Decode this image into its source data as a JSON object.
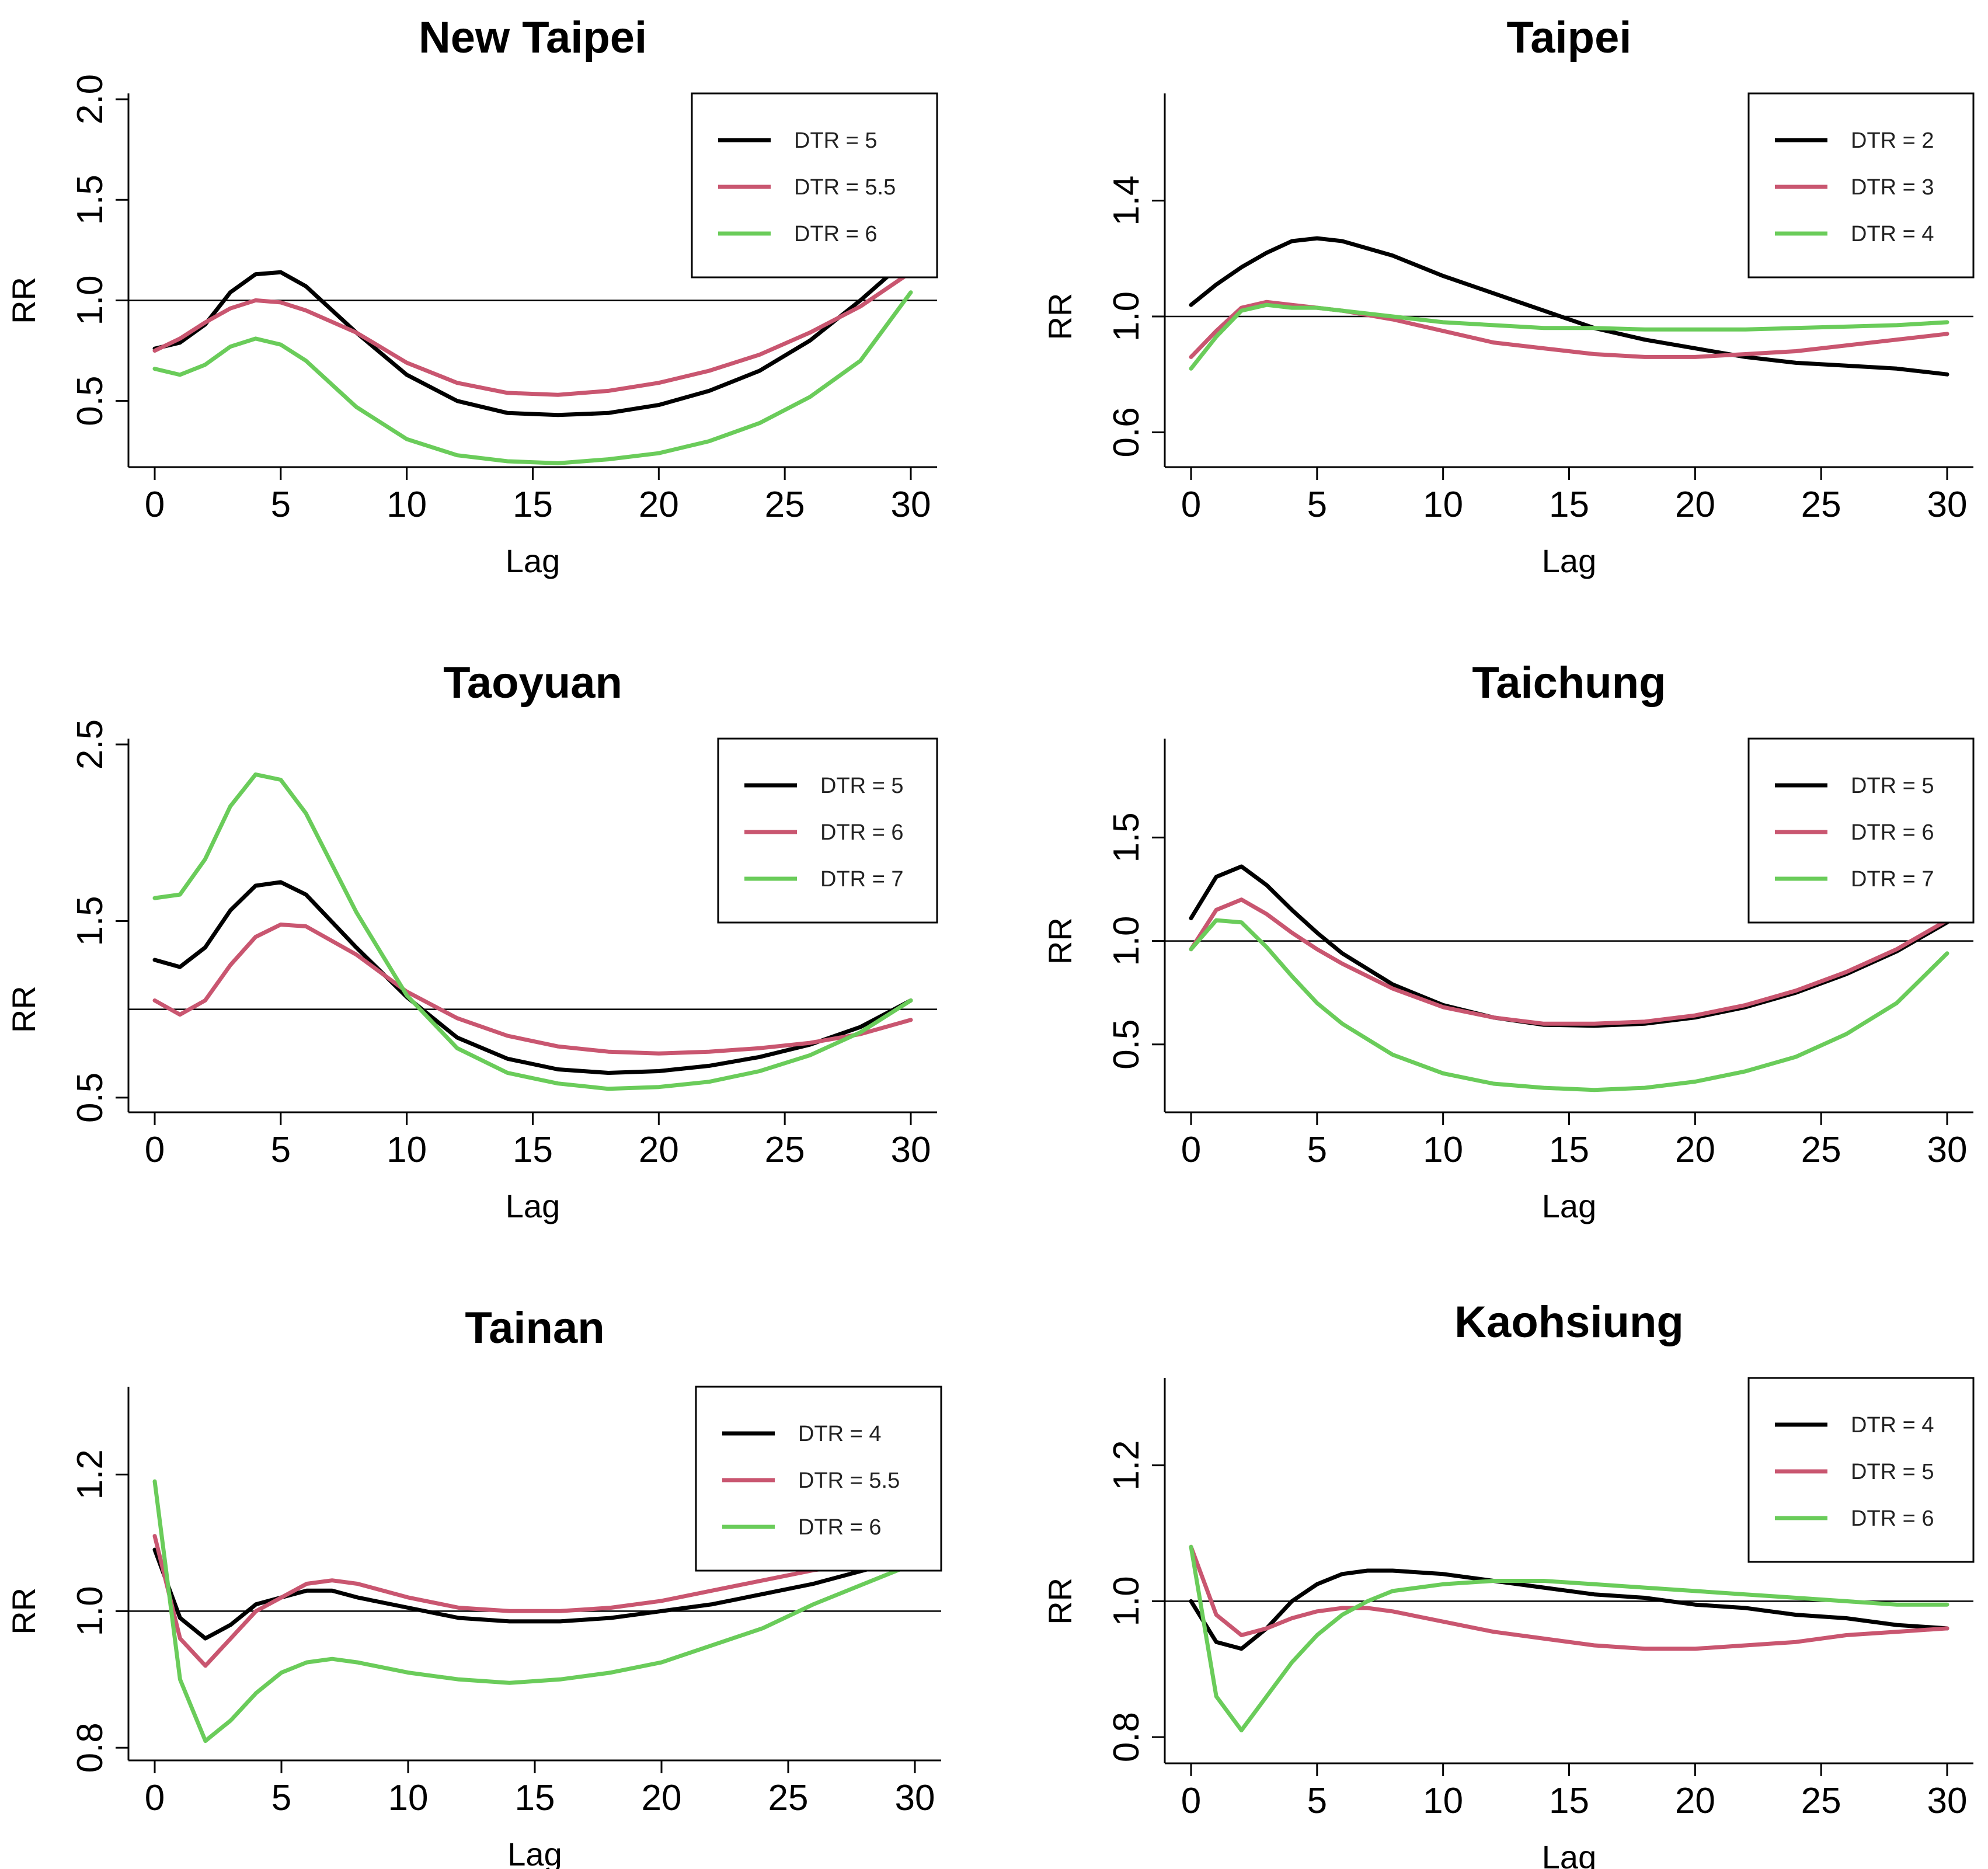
{
  "colors": {
    "black": "#000000",
    "red": "#c95670",
    "green": "#6acc5a",
    "refline": "#000000"
  },
  "chart_data": [
    {
      "type": "line",
      "title": "New Taipei",
      "xlabel": "Lag",
      "ylabel": "RR",
      "xlim": [
        0,
        30
      ],
      "ylim": [
        0.2,
        2.0
      ],
      "xticks": [
        "0",
        "5",
        "10",
        "15",
        "20",
        "25",
        "30"
      ],
      "yticks": [
        "0.5",
        "1.0",
        "1.5",
        "2.0"
      ],
      "yticks_values": [
        0.5,
        1.0,
        1.5,
        2.0
      ],
      "refline": 1.0,
      "legend_position": "top-right",
      "series": [
        {
          "name": "DTR = 5",
          "color": "black",
          "x": [
            0,
            1,
            2,
            3,
            4,
            5,
            6,
            8,
            10,
            12,
            14,
            16,
            18,
            20,
            22,
            24,
            26,
            28,
            30
          ],
          "values": [
            0.76,
            0.79,
            0.88,
            1.04,
            1.13,
            1.14,
            1.07,
            0.84,
            0.63,
            0.5,
            0.44,
            0.43,
            0.44,
            0.48,
            0.55,
            0.65,
            0.8,
            1.0,
            1.22
          ]
        },
        {
          "name": "DTR = 5.5",
          "color": "red",
          "x": [
            0,
            1,
            2,
            3,
            4,
            5,
            6,
            8,
            10,
            12,
            14,
            16,
            18,
            20,
            22,
            24,
            26,
            28,
            30
          ],
          "values": [
            0.75,
            0.81,
            0.89,
            0.96,
            1.0,
            0.99,
            0.95,
            0.84,
            0.69,
            0.59,
            0.54,
            0.53,
            0.55,
            0.59,
            0.65,
            0.73,
            0.84,
            0.97,
            1.14
          ]
        },
        {
          "name": "DTR = 6",
          "color": "green",
          "x": [
            0,
            1,
            2,
            3,
            4,
            5,
            6,
            8,
            10,
            12,
            14,
            16,
            18,
            20,
            22,
            24,
            26,
            28,
            30
          ],
          "values": [
            0.66,
            0.63,
            0.68,
            0.77,
            0.81,
            0.78,
            0.7,
            0.47,
            0.31,
            0.23,
            0.2,
            0.19,
            0.21,
            0.24,
            0.3,
            0.39,
            0.52,
            0.7,
            1.04
          ]
        }
      ]
    },
    {
      "type": "line",
      "title": "Taipei",
      "xlabel": "Lag",
      "ylabel": "RR",
      "xlim": [
        0,
        30
      ],
      "ylim": [
        0.5,
        1.75
      ],
      "xticks": [
        "0",
        "5",
        "10",
        "15",
        "20",
        "25",
        "30"
      ],
      "yticks": [
        "0.6",
        "1.0",
        "1.4"
      ],
      "yticks_values": [
        0.6,
        1.0,
        1.4
      ],
      "refline": 1.0,
      "legend_position": "top-right",
      "series": [
        {
          "name": "DTR = 2",
          "color": "black",
          "x": [
            0,
            1,
            2,
            3,
            4,
            5,
            6,
            8,
            10,
            12,
            14,
            16,
            18,
            20,
            22,
            24,
            26,
            28,
            30
          ],
          "values": [
            1.04,
            1.11,
            1.17,
            1.22,
            1.26,
            1.27,
            1.26,
            1.21,
            1.14,
            1.08,
            1.02,
            0.96,
            0.92,
            0.89,
            0.86,
            0.84,
            0.83,
            0.82,
            0.8
          ]
        },
        {
          "name": "DTR = 3",
          "color": "red",
          "x": [
            0,
            1,
            2,
            3,
            4,
            5,
            6,
            8,
            10,
            12,
            14,
            16,
            18,
            20,
            22,
            24,
            26,
            28,
            30
          ],
          "values": [
            0.86,
            0.95,
            1.03,
            1.05,
            1.04,
            1.03,
            1.02,
            0.99,
            0.95,
            0.91,
            0.89,
            0.87,
            0.86,
            0.86,
            0.87,
            0.88,
            0.9,
            0.92,
            0.94
          ]
        },
        {
          "name": "DTR = 4",
          "color": "green",
          "x": [
            0,
            1,
            2,
            3,
            4,
            5,
            6,
            8,
            10,
            12,
            14,
            16,
            18,
            20,
            22,
            24,
            26,
            28,
            30
          ],
          "values": [
            0.82,
            0.93,
            1.02,
            1.04,
            1.03,
            1.03,
            1.02,
            1.0,
            0.98,
            0.97,
            0.96,
            0.96,
            0.955,
            0.955,
            0.955,
            0.96,
            0.965,
            0.97,
            0.98
          ]
        }
      ]
    },
    {
      "type": "line",
      "title": "Taoyuan",
      "xlabel": "Lag",
      "ylabel": "RR",
      "xlim": [
        0,
        30
      ],
      "ylim": [
        0.45,
        2.5
      ],
      "xticks": [
        "0",
        "5",
        "10",
        "15",
        "20",
        "25",
        "30"
      ],
      "yticks": [
        "0.5",
        "1.5",
        "2.5"
      ],
      "yticks_values": [
        0.5,
        1.5,
        2.5
      ],
      "refline": 1.0,
      "legend_position": "top-right",
      "series": [
        {
          "name": "DTR = 5",
          "color": "black",
          "x": [
            0,
            1,
            2,
            3,
            4,
            5,
            6,
            8,
            10,
            12,
            14,
            16,
            18,
            20,
            22,
            24,
            26,
            28,
            30
          ],
          "values": [
            1.28,
            1.24,
            1.35,
            1.56,
            1.7,
            1.72,
            1.65,
            1.35,
            1.07,
            0.84,
            0.72,
            0.66,
            0.64,
            0.65,
            0.68,
            0.73,
            0.8,
            0.9,
            1.05
          ]
        },
        {
          "name": "DTR = 6",
          "color": "red",
          "x": [
            0,
            1,
            2,
            3,
            4,
            5,
            6,
            8,
            10,
            12,
            14,
            16,
            18,
            20,
            22,
            24,
            26,
            28,
            30
          ],
          "values": [
            1.05,
            0.97,
            1.05,
            1.25,
            1.41,
            1.48,
            1.47,
            1.31,
            1.1,
            0.95,
            0.85,
            0.79,
            0.76,
            0.75,
            0.76,
            0.78,
            0.81,
            0.86,
            0.94
          ]
        },
        {
          "name": "DTR = 7",
          "color": "green",
          "x": [
            0,
            1,
            2,
            3,
            4,
            5,
            6,
            8,
            10,
            12,
            14,
            16,
            18,
            20,
            22,
            24,
            26,
            28,
            30
          ],
          "values": [
            1.63,
            1.65,
            1.85,
            2.15,
            2.33,
            2.3,
            2.11,
            1.55,
            1.08,
            0.78,
            0.64,
            0.58,
            0.55,
            0.56,
            0.59,
            0.65,
            0.74,
            0.87,
            1.05
          ]
        }
      ]
    },
    {
      "type": "line",
      "title": "Taichung",
      "xlabel": "Lag",
      "ylabel": "RR",
      "xlim": [
        0,
        30
      ],
      "ylim": [
        0.2,
        1.95
      ],
      "xticks": [
        "0",
        "5",
        "10",
        "15",
        "20",
        "25",
        "30"
      ],
      "yticks": [
        "0.5",
        "1.0",
        "1.5"
      ],
      "yticks_values": [
        0.5,
        1.0,
        1.5
      ],
      "refline": 1.0,
      "legend_position": "top-right",
      "series": [
        {
          "name": "DTR = 5",
          "color": "black",
          "x": [
            0,
            1,
            2,
            3,
            4,
            5,
            6,
            8,
            10,
            12,
            14,
            16,
            18,
            20,
            22,
            24,
            26,
            28,
            30
          ],
          "values": [
            1.11,
            1.31,
            1.36,
            1.27,
            1.15,
            1.04,
            0.94,
            0.79,
            0.69,
            0.63,
            0.595,
            0.59,
            0.6,
            0.63,
            0.68,
            0.75,
            0.84,
            0.95,
            1.09
          ]
        },
        {
          "name": "DTR = 6",
          "color": "red",
          "x": [
            0,
            1,
            2,
            3,
            4,
            5,
            6,
            8,
            10,
            12,
            14,
            16,
            18,
            20,
            22,
            24,
            26,
            28,
            30
          ],
          "values": [
            0.96,
            1.15,
            1.2,
            1.13,
            1.04,
            0.96,
            0.89,
            0.77,
            0.68,
            0.63,
            0.6,
            0.6,
            0.61,
            0.64,
            0.69,
            0.76,
            0.85,
            0.96,
            1.1
          ]
        },
        {
          "name": "DTR = 7",
          "color": "green",
          "x": [
            0,
            1,
            2,
            3,
            4,
            5,
            6,
            8,
            10,
            12,
            14,
            16,
            18,
            20,
            22,
            24,
            26,
            28,
            30
          ],
          "values": [
            0.96,
            1.1,
            1.09,
            0.97,
            0.83,
            0.7,
            0.6,
            0.45,
            0.36,
            0.31,
            0.29,
            0.28,
            0.29,
            0.32,
            0.37,
            0.44,
            0.55,
            0.7,
            0.94
          ]
        }
      ]
    },
    {
      "type": "line",
      "title": "Tainan",
      "xlabel": "Lag",
      "ylabel": "RR",
      "xlim": [
        0,
        30
      ],
      "ylim": [
        0.79,
        1.32
      ],
      "xticks": [
        "0",
        "5",
        "10",
        "15",
        "20",
        "25",
        "30"
      ],
      "yticks": [
        "0.8",
        "1.0",
        "1.2"
      ],
      "yticks_values": [
        0.8,
        1.0,
        1.2
      ],
      "refline": 1.0,
      "legend_position": "top-right",
      "series": [
        {
          "name": "DTR = 4",
          "color": "black",
          "x": [
            0,
            1,
            2,
            3,
            4,
            5,
            6,
            7,
            8,
            10,
            12,
            14,
            16,
            18,
            20,
            22,
            24,
            26,
            28,
            30
          ],
          "values": [
            1.09,
            0.99,
            0.96,
            0.98,
            1.01,
            1.02,
            1.03,
            1.03,
            1.02,
            1.005,
            0.99,
            0.985,
            0.985,
            0.99,
            1.0,
            1.01,
            1.025,
            1.04,
            1.06,
            1.08
          ]
        },
        {
          "name": "DTR = 5.5",
          "color": "red",
          "x": [
            0,
            1,
            2,
            3,
            4,
            5,
            6,
            7,
            8,
            10,
            12,
            14,
            16,
            18,
            20,
            22,
            24,
            26,
            28,
            30
          ],
          "values": [
            1.11,
            0.96,
            0.92,
            0.96,
            1.0,
            1.02,
            1.04,
            1.045,
            1.04,
            1.02,
            1.005,
            1.0,
            1.0,
            1.005,
            1.015,
            1.03,
            1.045,
            1.06,
            1.07,
            1.09
          ]
        },
        {
          "name": "DTR = 6",
          "color": "green",
          "x": [
            0,
            1,
            2,
            3,
            4,
            5,
            6,
            7,
            8,
            10,
            12,
            14,
            16,
            18,
            20,
            22,
            24,
            26,
            28,
            30
          ],
          "values": [
            1.19,
            0.9,
            0.81,
            0.84,
            0.88,
            0.91,
            0.925,
            0.93,
            0.925,
            0.91,
            0.9,
            0.895,
            0.9,
            0.91,
            0.925,
            0.95,
            0.975,
            1.01,
            1.04,
            1.07
          ]
        }
      ]
    },
    {
      "type": "line",
      "title": "Kaohsiung",
      "xlabel": "Lag",
      "ylabel": "RR",
      "xlim": [
        0,
        30
      ],
      "ylim": [
        0.77,
        1.32
      ],
      "xticks": [
        "0",
        "5",
        "10",
        "15",
        "20",
        "25",
        "30"
      ],
      "yticks": [
        "0.8",
        "1.0",
        "1.2"
      ],
      "yticks_values": [
        0.8,
        1.0,
        1.2
      ],
      "refline": 1.0,
      "legend_position": "top-right",
      "series": [
        {
          "name": "DTR = 4",
          "color": "black",
          "x": [
            0,
            1,
            2,
            3,
            4,
            5,
            6,
            7,
            8,
            10,
            12,
            14,
            16,
            18,
            20,
            22,
            24,
            26,
            28,
            30
          ],
          "values": [
            1.0,
            0.94,
            0.93,
            0.96,
            1.0,
            1.025,
            1.04,
            1.045,
            1.045,
            1.04,
            1.03,
            1.02,
            1.01,
            1.005,
            0.995,
            0.99,
            0.98,
            0.975,
            0.965,
            0.96
          ]
        },
        {
          "name": "DTR = 5",
          "color": "red",
          "x": [
            0,
            1,
            2,
            3,
            4,
            5,
            6,
            7,
            8,
            10,
            12,
            14,
            16,
            18,
            20,
            22,
            24,
            26,
            28,
            30
          ],
          "values": [
            1.08,
            0.98,
            0.95,
            0.96,
            0.975,
            0.985,
            0.99,
            0.99,
            0.985,
            0.97,
            0.955,
            0.945,
            0.935,
            0.93,
            0.93,
            0.935,
            0.94,
            0.95,
            0.955,
            0.96
          ]
        },
        {
          "name": "DTR = 6",
          "color": "green",
          "x": [
            0,
            1,
            2,
            3,
            4,
            5,
            6,
            7,
            8,
            10,
            12,
            14,
            16,
            18,
            20,
            22,
            24,
            26,
            28,
            30
          ],
          "values": [
            1.08,
            0.86,
            0.81,
            0.86,
            0.91,
            0.95,
            0.98,
            1.0,
            1.015,
            1.025,
            1.03,
            1.03,
            1.025,
            1.02,
            1.015,
            1.01,
            1.005,
            1.0,
            0.995,
            0.995
          ]
        }
      ]
    }
  ]
}
